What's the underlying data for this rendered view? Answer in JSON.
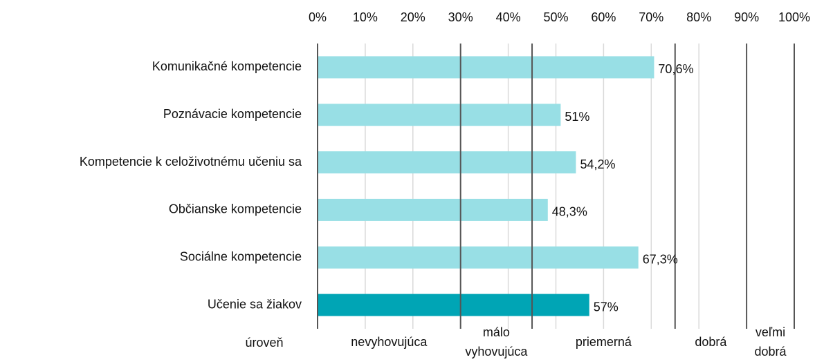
{
  "chart_data": {
    "type": "bar",
    "orientation": "horizontal",
    "categories": [
      "Komunikačné kompetencie",
      "Poznávacie kompetencie",
      "Kompetencie k celoživotnému učeniu sa",
      "Občianske kompetencie",
      "Sociálne kompetencie",
      "Učenie sa žiakov"
    ],
    "values": [
      70.6,
      51,
      54.2,
      48.3,
      67.3,
      57
    ],
    "value_labels": [
      "70,6%",
      "51%",
      "54,2%",
      "48,3%",
      "67,3%",
      "57%"
    ],
    "colors": [
      "#98dfe5",
      "#98dfe5",
      "#98dfe5",
      "#98dfe5",
      "#98dfe5",
      "#00a5b5"
    ],
    "xlim": [
      0,
      100
    ],
    "xticks": [
      {
        "value": 0,
        "label": "0%"
      },
      {
        "value": 10,
        "label": "10%"
      },
      {
        "value": 20,
        "label": "20%"
      },
      {
        "value": 30,
        "label": "30%"
      },
      {
        "value": 40,
        "label": "40%"
      },
      {
        "value": 50,
        "label": "50%"
      },
      {
        "value": 60,
        "label": "60%"
      },
      {
        "value": 70,
        "label": "70%"
      },
      {
        "value": 80,
        "label": "80%"
      },
      {
        "value": 90,
        "label": "90%"
      },
      {
        "value": 100,
        "label": "100%"
      }
    ],
    "grid": true,
    "levels_title": "úroveň",
    "levels": [
      {
        "label": [
          "nevyhovujúca"
        ],
        "from": 0,
        "to": 30
      },
      {
        "label": [
          "málo",
          "vyhovujúca"
        ],
        "from": 30,
        "to": 45
      },
      {
        "label": [
          "priemerná"
        ],
        "from": 45,
        "to": 75
      },
      {
        "label": [
          "dobrá"
        ],
        "from": 75,
        "to": 90
      },
      {
        "label": [
          "veľmi",
          "dobrá"
        ],
        "from": 90,
        "to": 100
      }
    ]
  }
}
